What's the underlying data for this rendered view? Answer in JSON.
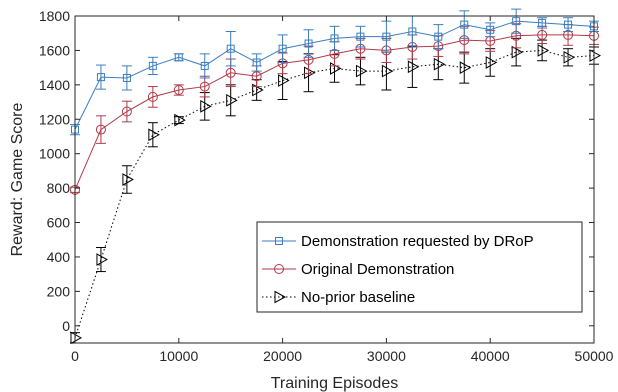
{
  "chart_data": {
    "type": "line",
    "xlabel": "Training Episodes",
    "ylabel": "Reward: Game Score",
    "xlim": [
      0,
      50000
    ],
    "ylim": [
      -100,
      1800
    ],
    "xticks": [
      0,
      10000,
      20000,
      30000,
      40000,
      50000
    ],
    "yticks": [
      0,
      200,
      400,
      600,
      800,
      1000,
      1200,
      1400,
      1600,
      1800
    ],
    "grid": false,
    "legend_position": "bottom-right",
    "x": [
      0,
      2500,
      5000,
      7500,
      10000,
      12500,
      15000,
      17500,
      20000,
      22500,
      25000,
      27500,
      30000,
      32500,
      35000,
      37500,
      40000,
      42500,
      45000,
      47500,
      50000
    ],
    "series": [
      {
        "name": "Demonstration requested by DRoP",
        "color": "#3a7dc0",
        "marker": "square",
        "line_style": "solid",
        "values": [
          1140,
          1445,
          1440,
          1510,
          1560,
          1510,
          1610,
          1530,
          1610,
          1640,
          1670,
          1680,
          1680,
          1710,
          1680,
          1750,
          1720,
          1770,
          1760,
          1750,
          1740
        ],
        "errors": [
          30,
          70,
          70,
          50,
          20,
          70,
          100,
          50,
          80,
          80,
          70,
          60,
          90,
          90,
          70,
          80,
          40,
          70,
          30,
          40,
          30
        ]
      },
      {
        "name": "Original Demonstration",
        "color": "#b03a48",
        "marker": "circle",
        "line_style": "solid",
        "values": [
          790,
          1140,
          1245,
          1330,
          1370,
          1390,
          1470,
          1450,
          1525,
          1545,
          1580,
          1610,
          1600,
          1620,
          1625,
          1660,
          1655,
          1685,
          1690,
          1690,
          1685
        ],
        "errors": [
          15,
          80,
          60,
          60,
          30,
          60,
          80,
          60,
          60,
          80,
          70,
          60,
          70,
          70,
          60,
          80,
          60,
          70,
          50,
          60,
          50
        ]
      },
      {
        "name": "No-prior baseline",
        "color": "#000000",
        "marker": "triangle-right",
        "line_style": "dotted",
        "values": [
          -70,
          385,
          850,
          1110,
          1195,
          1275,
          1310,
          1370,
          1425,
          1470,
          1495,
          1480,
          1480,
          1505,
          1520,
          1500,
          1530,
          1590,
          1600,
          1560,
          1570
        ],
        "errors": [
          30,
          70,
          80,
          70,
          20,
          80,
          90,
          60,
          110,
          110,
          80,
          80,
          110,
          120,
          90,
          90,
          80,
          80,
          60,
          50,
          50
        ]
      }
    ]
  }
}
